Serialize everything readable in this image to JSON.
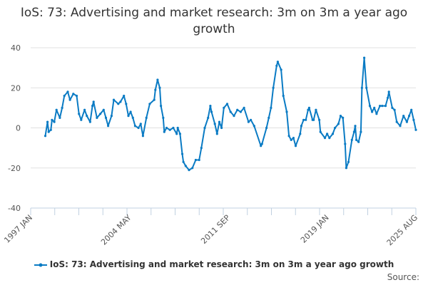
{
  "chart_data": {
    "type": "line",
    "title": "IoS: 73: Advertising and market research: 3m on 3m a year ago growth",
    "xlabel": "",
    "ylabel": "",
    "ylim": [
      -40,
      40
    ],
    "yticks": [
      -40,
      -20,
      0,
      20,
      40
    ],
    "xlim": [
      "1997-01",
      "2025-08"
    ],
    "xtick_labels": [
      {
        "date": "1997-01",
        "label": "1997 JAN"
      },
      {
        "date": "2004-05",
        "label": "2004 MAY"
      },
      {
        "date": "2011-09",
        "label": "2011 SEP"
      },
      {
        "date": "2019-01",
        "label": "2019 JAN"
      },
      {
        "date": "2025-08",
        "label": "2025 AUG"
      }
    ],
    "grid": true,
    "legend_position": "bottom",
    "color": "#0a7bc4",
    "series": [
      {
        "name": "IoS: 73: Advertising and market research: 3m on 3m a year ago growth",
        "points": [
          [
            "1998-02",
            -4
          ],
          [
            "1998-04",
            3
          ],
          [
            "1998-05",
            -2
          ],
          [
            "1998-07",
            -1
          ],
          [
            "1998-08",
            4
          ],
          [
            "1998-10",
            3
          ],
          [
            "1998-12",
            9
          ],
          [
            "1999-03",
            5
          ],
          [
            "1999-05",
            10
          ],
          [
            "1999-07",
            16
          ],
          [
            "1999-10",
            18
          ],
          [
            "1999-12",
            14
          ],
          [
            "2000-03",
            17
          ],
          [
            "2000-06",
            16
          ],
          [
            "2000-08",
            7
          ],
          [
            "2000-10",
            4
          ],
          [
            "2001-01",
            9
          ],
          [
            "2001-03",
            6
          ],
          [
            "2001-06",
            3
          ],
          [
            "2001-08",
            11
          ],
          [
            "2001-09",
            13
          ],
          [
            "2001-12",
            5
          ],
          [
            "2002-03",
            7
          ],
          [
            "2002-06",
            9
          ],
          [
            "2002-08",
            5
          ],
          [
            "2002-10",
            1
          ],
          [
            "2003-01",
            6
          ],
          [
            "2003-03",
            14
          ],
          [
            "2003-07",
            12
          ],
          [
            "2003-09",
            13
          ],
          [
            "2003-12",
            16
          ],
          [
            "2004-02",
            12
          ],
          [
            "2004-04",
            6
          ],
          [
            "2004-06",
            8
          ],
          [
            "2004-08",
            5
          ],
          [
            "2004-10",
            1
          ],
          [
            "2005-01",
            0
          ],
          [
            "2005-03",
            2
          ],
          [
            "2005-05",
            -4
          ],
          [
            "2005-08",
            5
          ],
          [
            "2005-11",
            12
          ],
          [
            "2006-03",
            14
          ],
          [
            "2006-04",
            19
          ],
          [
            "2006-06",
            24
          ],
          [
            "2006-08",
            20
          ],
          [
            "2006-09",
            11
          ],
          [
            "2006-11",
            5
          ],
          [
            "2006-12",
            -2
          ],
          [
            "2007-02",
            0
          ],
          [
            "2007-05",
            -1
          ],
          [
            "2007-08",
            0
          ],
          [
            "2007-11",
            -3
          ],
          [
            "2007-12",
            0
          ],
          [
            "2008-02",
            -3
          ],
          [
            "2008-04",
            -13
          ],
          [
            "2008-05",
            -17
          ],
          [
            "2008-07",
            -19
          ],
          [
            "2008-10",
            -21
          ],
          [
            "2009-01",
            -20
          ],
          [
            "2009-04",
            -16
          ],
          [
            "2009-07",
            -16
          ],
          [
            "2009-09",
            -10
          ],
          [
            "2009-12",
            0
          ],
          [
            "2010-03",
            5
          ],
          [
            "2010-05",
            11
          ],
          [
            "2010-06",
            8
          ],
          [
            "2010-09",
            2
          ],
          [
            "2010-11",
            -3
          ],
          [
            "2011-01",
            3
          ],
          [
            "2011-03",
            0
          ],
          [
            "2011-05",
            10
          ],
          [
            "2011-08",
            12
          ],
          [
            "2011-11",
            8
          ],
          [
            "2012-02",
            6
          ],
          [
            "2012-05",
            9
          ],
          [
            "2012-08",
            8
          ],
          [
            "2012-11",
            10
          ],
          [
            "2013-03",
            3
          ],
          [
            "2013-05",
            4
          ],
          [
            "2013-08",
            1
          ],
          [
            "2014-02",
            -9
          ],
          [
            "2014-03",
            -8
          ],
          [
            "2014-07",
            0
          ],
          [
            "2014-09",
            5
          ],
          [
            "2014-11",
            10
          ],
          [
            "2015-01",
            20
          ],
          [
            "2015-04",
            31
          ],
          [
            "2015-05",
            33
          ],
          [
            "2015-08",
            29
          ],
          [
            "2015-10",
            16
          ],
          [
            "2016-01",
            8
          ],
          [
            "2016-03",
            -4
          ],
          [
            "2016-05",
            -6
          ],
          [
            "2016-07",
            -5
          ],
          [
            "2016-09",
            -9
          ],
          [
            "2017-01",
            -3
          ],
          [
            "2017-02",
            1
          ],
          [
            "2017-04",
            4
          ],
          [
            "2017-06",
            4
          ],
          [
            "2017-08",
            9
          ],
          [
            "2017-09",
            10
          ],
          [
            "2017-12",
            4
          ],
          [
            "2018-01",
            4
          ],
          [
            "2018-03",
            9
          ],
          [
            "2018-06",
            4
          ],
          [
            "2018-07",
            -2
          ],
          [
            "2018-11",
            -5
          ],
          [
            "2019-01",
            -3
          ],
          [
            "2019-03",
            -5
          ],
          [
            "2019-06",
            -3
          ],
          [
            "2019-08",
            0
          ],
          [
            "2019-11",
            2
          ],
          [
            "2020-01",
            6
          ],
          [
            "2020-03",
            5
          ],
          [
            "2020-05",
            -8
          ],
          [
            "2020-06",
            -20
          ],
          [
            "2020-08",
            -17
          ],
          [
            "2020-11",
            -6
          ],
          [
            "2021-01",
            -2
          ],
          [
            "2021-02",
            1
          ],
          [
            "2021-03",
            -6
          ],
          [
            "2021-05",
            -7
          ],
          [
            "2021-07",
            -2
          ],
          [
            "2021-08",
            20
          ],
          [
            "2021-10",
            35
          ],
          [
            "2021-12",
            20
          ],
          [
            "2022-03",
            11
          ],
          [
            "2022-05",
            8
          ],
          [
            "2022-07",
            10
          ],
          [
            "2022-09",
            7
          ],
          [
            "2022-12",
            11
          ],
          [
            "2023-02",
            11
          ],
          [
            "2023-05",
            11
          ],
          [
            "2023-07",
            15
          ],
          [
            "2023-08",
            18
          ],
          [
            "2023-11",
            10
          ],
          [
            "2024-01",
            9
          ],
          [
            "2024-03",
            3
          ],
          [
            "2024-06",
            1
          ],
          [
            "2024-09",
            6
          ],
          [
            "2024-12",
            3
          ],
          [
            "2025-02",
            6
          ],
          [
            "2025-04",
            9
          ],
          [
            "2025-06",
            4
          ],
          [
            "2025-08",
            -1
          ]
        ]
      }
    ]
  },
  "legend": {
    "label": "IoS: 73: Advertising and market research: 3m on 3m a year ago growth"
  },
  "source_label": "Source:"
}
